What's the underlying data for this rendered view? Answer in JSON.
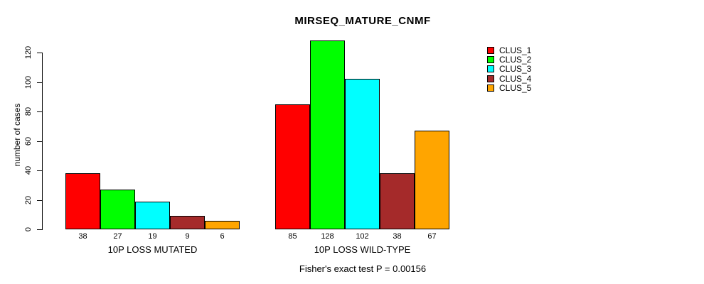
{
  "chart_data": {
    "type": "bar",
    "title": "MIRSEQ_MATURE_CNMF",
    "ylabel": "number of cases",
    "xlabel": "",
    "ylim": [
      0,
      130
    ],
    "yticks": [
      0,
      20,
      40,
      60,
      80,
      100,
      120
    ],
    "grid": false,
    "legend_position": "top-right",
    "series_labels": [
      "CLUS_1",
      "CLUS_2",
      "CLUS_3",
      "CLUS_4",
      "CLUS_5"
    ],
    "colors": [
      "#FF0000",
      "#00FF00",
      "#00FFFF",
      "#A52A2A",
      "#FFA500"
    ],
    "groups": [
      {
        "label": "10P LOSS MUTATED",
        "values": [
          38,
          27,
          19,
          9,
          6
        ]
      },
      {
        "label": "10P LOSS WILD-TYPE",
        "values": [
          85,
          128,
          102,
          38,
          67
        ]
      }
    ],
    "bar_value_labels_shown": true,
    "annotation": "Fisher's exact test P = 0.00156"
  }
}
